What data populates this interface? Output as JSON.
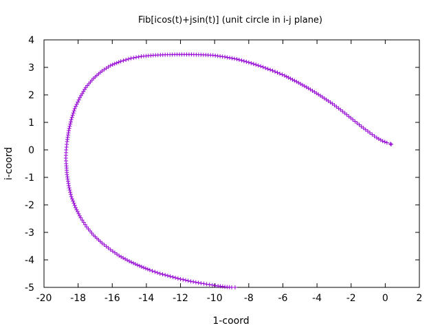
{
  "chart_data": {
    "type": "scatter",
    "title": "Fib[icos(t)+jsin(t)] (unit circle in i-j plane)",
    "xlabel": "1-coord",
    "ylabel": "i-coord",
    "xlim": [
      -20,
      2
    ],
    "ylim": [
      -5,
      4
    ],
    "xticks": [
      -20,
      -18,
      -16,
      -14,
      -12,
      -10,
      -8,
      -6,
      -4,
      -2,
      0,
      2
    ],
    "yticks": [
      -5,
      -4,
      -3,
      -2,
      -1,
      0,
      1,
      2,
      3,
      4
    ],
    "grid": false,
    "legend": "none",
    "marker": "+",
    "series": [
      {
        "color": "#9400d3",
        "points": [
          [
            -8.8,
            -5.0
          ],
          [
            -9.0,
            -5.0
          ],
          [
            -9.4,
            -4.98
          ],
          [
            -9.8,
            -4.95
          ],
          [
            -10.3,
            -4.9
          ],
          [
            -10.8,
            -4.85
          ],
          [
            -11.4,
            -4.78
          ],
          [
            -12.0,
            -4.7
          ],
          [
            -12.6,
            -4.6
          ],
          [
            -13.2,
            -4.5
          ],
          [
            -13.8,
            -4.37
          ],
          [
            -14.4,
            -4.22
          ],
          [
            -15.0,
            -4.05
          ],
          [
            -15.6,
            -3.85
          ],
          [
            -16.1,
            -3.63
          ],
          [
            -16.6,
            -3.39
          ],
          [
            -17.1,
            -3.1
          ],
          [
            -17.5,
            -2.8
          ],
          [
            -17.85,
            -2.47
          ],
          [
            -18.15,
            -2.1
          ],
          [
            -18.4,
            -1.7
          ],
          [
            -18.55,
            -1.3
          ],
          [
            -18.65,
            -0.9
          ],
          [
            -18.7,
            -0.5
          ],
          [
            -18.72,
            -0.3
          ],
          [
            -18.7,
            0.0
          ],
          [
            -18.65,
            0.3
          ],
          [
            -18.55,
            0.7
          ],
          [
            -18.4,
            1.1
          ],
          [
            -18.2,
            1.5
          ],
          [
            -17.9,
            1.9
          ],
          [
            -17.55,
            2.27
          ],
          [
            -17.1,
            2.6
          ],
          [
            -16.6,
            2.87
          ],
          [
            -16.1,
            3.07
          ],
          [
            -15.5,
            3.22
          ],
          [
            -14.9,
            3.33
          ],
          [
            -14.3,
            3.4
          ],
          [
            -13.6,
            3.44
          ],
          [
            -12.9,
            3.46
          ],
          [
            -12.2,
            3.47
          ],
          [
            -11.5,
            3.47
          ],
          [
            -10.8,
            3.46
          ],
          [
            -10.1,
            3.44
          ],
          [
            -9.4,
            3.38
          ],
          [
            -8.7,
            3.3
          ],
          [
            -8.0,
            3.18
          ],
          [
            -7.3,
            3.04
          ],
          [
            -6.6,
            2.88
          ],
          [
            -5.9,
            2.7
          ],
          [
            -5.2,
            2.48
          ],
          [
            -4.5,
            2.24
          ],
          [
            -3.8,
            1.97
          ],
          [
            -3.1,
            1.68
          ],
          [
            -2.5,
            1.4
          ],
          [
            -1.9,
            1.1
          ],
          [
            -1.4,
            0.85
          ],
          [
            -0.9,
            0.62
          ],
          [
            -0.5,
            0.44
          ],
          [
            -0.15,
            0.32
          ],
          [
            0.1,
            0.26
          ],
          [
            0.3,
            0.22
          ],
          [
            0.35,
            0.2
          ]
        ]
      }
    ]
  }
}
